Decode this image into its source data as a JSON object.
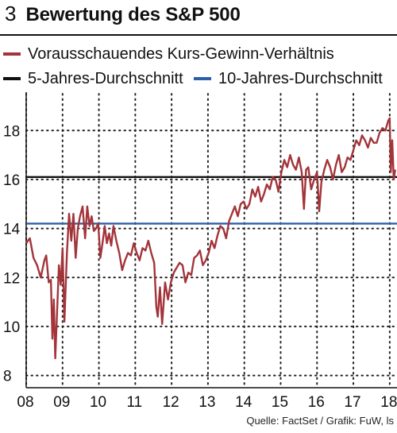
{
  "header": {
    "number": "3",
    "title": "Bewertung des S&P 500"
  },
  "legend": [
    {
      "label": "Vorausschauendes Kurs-Gewinn-Verhältnis",
      "color": "#a3343a"
    },
    {
      "label": "5-Jahres-Durchschnitt",
      "color": "#111111"
    },
    {
      "label": "10-Jahres-Durchschnitt",
      "color": "#2f5ea8"
    }
  ],
  "chart_data": {
    "type": "line",
    "title": "Bewertung des S&P 500",
    "x_tick_labels": [
      "08",
      "09",
      "10",
      "11",
      "12",
      "13",
      "14",
      "15",
      "16",
      "17",
      "18"
    ],
    "y_tick_labels": [
      "8",
      "10",
      "12",
      "14",
      "16",
      "18"
    ],
    "xlim": [
      2008.0,
      2018.2
    ],
    "ylim": [
      7.5,
      19.5
    ],
    "grid": "dotted vertical and horizontal",
    "series": [
      {
        "name": "Vorausschauendes Kurs-Gewinn-Verhältnis",
        "color": "#a3343a",
        "x": [
          2008.0,
          2008.1,
          2008.2,
          2008.3,
          2008.4,
          2008.5,
          2008.55,
          2008.62,
          2008.68,
          2008.72,
          2008.76,
          2008.8,
          2008.85,
          2008.9,
          2008.95,
          2009.0,
          2009.05,
          2009.12,
          2009.18,
          2009.24,
          2009.3,
          2009.36,
          2009.42,
          2009.48,
          2009.55,
          2009.62,
          2009.68,
          2009.74,
          2009.8,
          2009.86,
          2009.92,
          2009.98,
          2010.04,
          2010.1,
          2010.16,
          2010.22,
          2010.28,
          2010.34,
          2010.4,
          2010.48,
          2010.56,
          2010.64,
          2010.72,
          2010.8,
          2010.88,
          2010.96,
          2011.04,
          2011.12,
          2011.2,
          2011.28,
          2011.36,
          2011.44,
          2011.52,
          2011.58,
          2011.62,
          2011.68,
          2011.74,
          2011.82,
          2011.9,
          2011.98,
          2012.06,
          2012.14,
          2012.22,
          2012.3,
          2012.38,
          2012.46,
          2012.54,
          2012.62,
          2012.7,
          2012.78,
          2012.86,
          2012.94,
          2013.02,
          2013.1,
          2013.18,
          2013.26,
          2013.34,
          2013.42,
          2013.5,
          2013.58,
          2013.66,
          2013.74,
          2013.82,
          2013.9,
          2013.98,
          2014.06,
          2014.14,
          2014.22,
          2014.3,
          2014.38,
          2014.46,
          2014.54,
          2014.62,
          2014.7,
          2014.78,
          2014.86,
          2014.94,
          2015.02,
          2015.1,
          2015.18,
          2015.26,
          2015.34,
          2015.42,
          2015.5,
          2015.58,
          2015.64,
          2015.7,
          2015.76,
          2015.84,
          2015.92,
          2016.0,
          2016.06,
          2016.12,
          2016.2,
          2016.28,
          2016.36,
          2016.44,
          2016.52,
          2016.6,
          2016.68,
          2016.76,
          2016.84,
          2016.92,
          2017.0,
          2017.08,
          2017.16,
          2017.24,
          2017.32,
          2017.4,
          2017.48,
          2017.56,
          2017.64,
          2017.72,
          2017.8,
          2017.88,
          2017.96,
          2018.0,
          2018.03,
          2018.07,
          2018.11,
          2018.15
        ],
        "values": [
          13.4,
          13.6,
          12.8,
          12.5,
          12.0,
          12.7,
          12.9,
          11.8,
          11.9,
          9.5,
          11.1,
          8.7,
          10.6,
          12.5,
          11.7,
          13.2,
          10.2,
          13.0,
          14.6,
          13.5,
          14.6,
          12.8,
          14.0,
          14.5,
          14.9,
          13.6,
          14.9,
          14.1,
          14.5,
          13.9,
          14.0,
          14.2,
          12.8,
          13.4,
          14.1,
          13.4,
          13.8,
          13.3,
          14.1,
          13.5,
          13.0,
          12.3,
          12.7,
          13.0,
          12.9,
          13.4,
          13.0,
          12.7,
          13.2,
          13.1,
          13.5,
          13.0,
          12.6,
          10.8,
          10.4,
          11.6,
          10.1,
          11.8,
          11.1,
          11.8,
          12.2,
          12.4,
          12.6,
          12.5,
          11.8,
          12.2,
          12.1,
          12.8,
          12.9,
          13.1,
          12.5,
          12.7,
          13.0,
          13.5,
          13.2,
          13.7,
          14.1,
          14.0,
          13.6,
          14.3,
          14.6,
          14.9,
          14.5,
          15.0,
          15.1,
          14.8,
          15.0,
          15.6,
          15.3,
          15.7,
          15.1,
          15.4,
          15.8,
          15.6,
          16.1,
          16.0,
          15.5,
          16.3,
          16.8,
          16.5,
          17.0,
          16.6,
          16.4,
          16.9,
          16.3,
          14.8,
          16.4,
          16.5,
          15.6,
          16.0,
          16.3,
          14.7,
          15.9,
          16.4,
          16.8,
          16.5,
          16.0,
          16.6,
          17.0,
          16.3,
          16.5,
          16.9,
          16.8,
          17.2,
          17.6,
          17.4,
          17.8,
          17.6,
          17.3,
          17.7,
          17.5,
          17.5,
          17.9,
          18.1,
          18.0,
          18.4,
          18.5,
          16.3,
          17.6,
          16.0,
          16.4
        ]
      }
    ],
    "reference_lines": [
      {
        "name": "5-Jahres-Durchschnitt",
        "value": 16.1,
        "color": "#111111"
      },
      {
        "name": "10-Jahres-Durchschnitt",
        "value": 14.2,
        "color": "#2f5ea8"
      }
    ]
  },
  "source": "Quelle: FactSet / Grafik: FuW, ls"
}
